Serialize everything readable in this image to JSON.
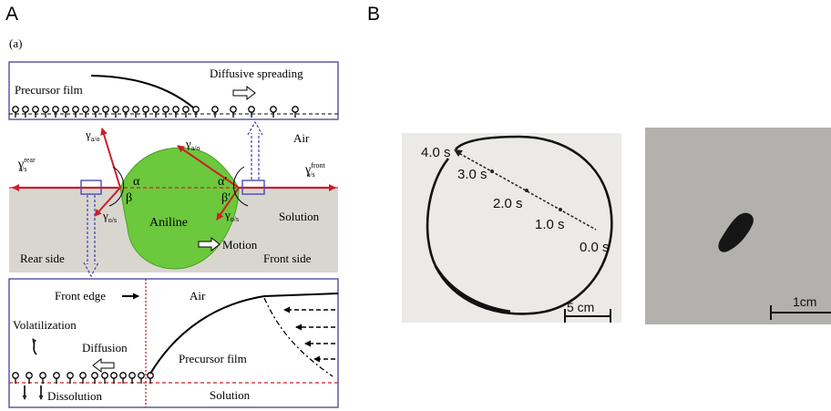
{
  "panels": {
    "a": "A",
    "b": "B"
  },
  "fig": {
    "sublabel": "(a)",
    "top": {
      "precursor_film": "Precursor film",
      "diffusive_spreading": "Diffusive spreading"
    },
    "middle": {
      "air": "Air",
      "gamma": "γ",
      "sub_as": "a/s",
      "sup_rear": "rear",
      "sup_front": "front",
      "sub_ao": "a/o",
      "sub_os": "o/s",
      "alpha": "α",
      "beta": "β",
      "alpha_prime": "α′",
      "beta_prime": "β′",
      "aniline": "Aniline",
      "solution": "Solution",
      "motion": "Motion",
      "rear_side": "Rear side",
      "front_side": "Front side"
    },
    "bottom": {
      "front_edge": "Front edge",
      "air": "Air",
      "volatilization": "Volatilization",
      "diffusion": "Diffusion",
      "precursor_film": "Precursor film",
      "dissolution": "Dissolution",
      "solution": "Solution"
    }
  },
  "photo1": {
    "times": [
      "4.0 s",
      "3.0 s",
      "2.0 s",
      "1.0 s",
      "0.0 s"
    ],
    "scale": "5 cm"
  },
  "photo2": {
    "scale": "1cm"
  },
  "colors": {
    "frame": "#5a5aa8",
    "red": "#c8202a",
    "green": "#6cc83c",
    "sand": "#d9d6d0",
    "dashblue": "#4a4ab8"
  }
}
